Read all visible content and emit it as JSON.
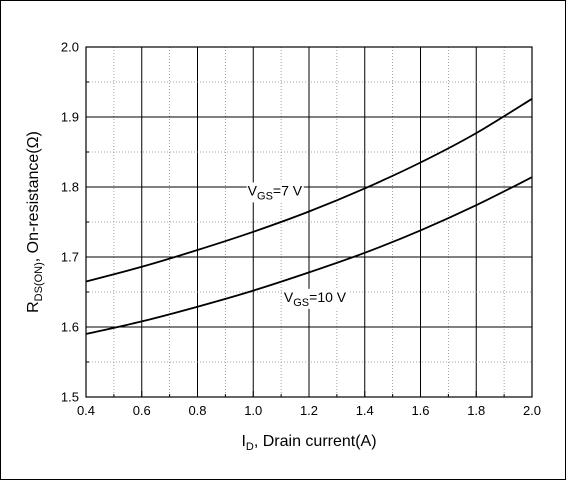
{
  "chart_data": {
    "type": "line",
    "xlabel": {
      "main": "I",
      "sub": "D",
      "rest": ", Drain current(A)"
    },
    "ylabel": {
      "main": "R",
      "sub": "DS(ON)",
      "rest": ",  On-resistance(Ω)"
    },
    "xlim": [
      0.4,
      2.0
    ],
    "ylim": [
      1.5,
      2.0
    ],
    "x_ticks": [
      {
        "v": 0.4,
        "label": "0.4"
      },
      {
        "v": 0.6,
        "label": "0.6"
      },
      {
        "v": 0.8,
        "label": "0.8"
      },
      {
        "v": 1.0,
        "label": "1.0"
      },
      {
        "v": 1.2,
        "label": "1.2"
      },
      {
        "v": 1.4,
        "label": "1.4"
      },
      {
        "v": 1.6,
        "label": "1.6"
      },
      {
        "v": 1.8,
        "label": "1.8"
      },
      {
        "v": 2.0,
        "label": "2.0"
      }
    ],
    "y_ticks": [
      {
        "v": 1.5,
        "label": "1.5"
      },
      {
        "v": 1.6,
        "label": "1.6"
      },
      {
        "v": 1.7,
        "label": "1.7"
      },
      {
        "v": 1.8,
        "label": "1.8"
      },
      {
        "v": 1.9,
        "label": "1.9"
      },
      {
        "v": 2.0,
        "label": "2.0"
      }
    ],
    "grid": true,
    "series": [
      {
        "name": "V_GS=7 V",
        "label": {
          "main": "V",
          "sub": "GS",
          "rest": "=7 V"
        },
        "x": [
          0.4,
          0.6,
          0.8,
          1.0,
          1.2,
          1.4,
          1.6,
          1.8,
          2.0
        ],
        "y": [
          1.665,
          1.686,
          1.71,
          1.736,
          1.765,
          1.798,
          1.835,
          1.877,
          1.926
        ]
      },
      {
        "name": "V_GS=10 V",
        "label": {
          "main": "V",
          "sub": "GS",
          "rest": "=10 V"
        },
        "x": [
          0.4,
          0.6,
          0.8,
          1.0,
          1.2,
          1.4,
          1.6,
          1.8,
          2.0
        ],
        "y": [
          1.59,
          1.608,
          1.629,
          1.652,
          1.678,
          1.706,
          1.738,
          1.774,
          1.814
        ]
      }
    ]
  }
}
